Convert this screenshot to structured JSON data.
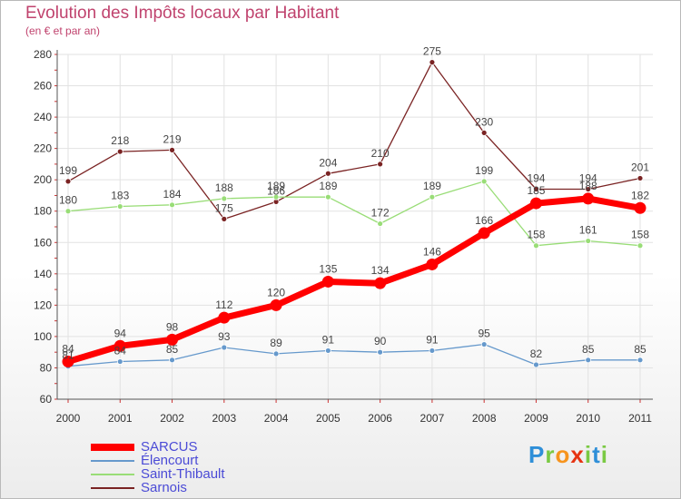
{
  "chart_data": {
    "type": "line",
    "title": "Evolution des Impôts locaux par Habitant",
    "subtitle": "(en € et par an)",
    "xlabel": "",
    "ylabel": "",
    "ylim": [
      60,
      280
    ],
    "yticks": [
      60,
      80,
      100,
      120,
      140,
      160,
      180,
      200,
      220,
      240,
      260,
      280
    ],
    "categories": [
      "2000",
      "2001",
      "2002",
      "2003",
      "2004",
      "2005",
      "2006",
      "2007",
      "2008",
      "2009",
      "2010",
      "2011"
    ],
    "grid": true,
    "legend_position": "bottom-left",
    "series": [
      {
        "name": "Sarnois",
        "color": "#7a2323",
        "values": [
          199,
          218,
          219,
          175,
          186,
          204,
          210,
          275,
          230,
          194,
          194,
          201
        ]
      },
      {
        "name": "Saint-Thibault",
        "color": "#99dd77",
        "values": [
          180,
          183,
          184,
          188,
          189,
          189,
          172,
          189,
          199,
          158,
          161,
          158
        ]
      },
      {
        "name": "Élencourt",
        "color": "#6699cc",
        "values": [
          81,
          84,
          85,
          93,
          89,
          91,
          90,
          91,
          95,
          82,
          85,
          85
        ]
      },
      {
        "name": "SARCUS",
        "color": "#ff0000",
        "values": [
          84,
          94,
          98,
          112,
          120,
          135,
          134,
          146,
          166,
          185,
          188,
          182
        ]
      }
    ]
  },
  "legend": {
    "items": [
      {
        "label": "SARCUS",
        "color": "#ff0000"
      },
      {
        "label": "Élencourt",
        "color": "#6699cc"
      },
      {
        "label": "Saint-Thibault",
        "color": "#99dd77"
      },
      {
        "label": "Sarnois",
        "color": "#7a2323"
      }
    ]
  },
  "logo": {
    "letters": [
      "P",
      "r",
      "o",
      "x",
      "i",
      "t",
      "i"
    ],
    "colors": [
      "#2f8fd8",
      "#7ac943",
      "#f7941d",
      "#e63312",
      "#7ac943",
      "#2f8fd8",
      "#7ac943"
    ]
  }
}
